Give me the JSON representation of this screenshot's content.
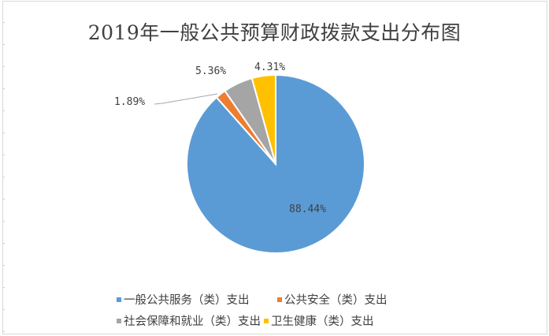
{
  "chart_data": {
    "type": "pie",
    "title": "2019年一般公共预算财政拨款支出分布图",
    "categories": [
      "一般公共服务（类）支出",
      "公共安全（类）支出",
      "社会保障和就业（类）支出",
      "卫生健康（类）支出"
    ],
    "values": [
      88.44,
      1.89,
      5.36,
      4.31
    ],
    "labels": [
      "88.44%",
      "1.89%",
      "5.36%",
      "4.31%"
    ],
    "colors": [
      "#5B9BD5",
      "#ED7D31",
      "#A5A5A5",
      "#FFC000"
    ],
    "legend_position": "bottom",
    "start_angle": "12 o'clock, clockwise"
  },
  "title": "2019年一般公共预算财政拨款支出分布图",
  "legend": {
    "items": [
      {
        "label": "一般公共服务（类）支出",
        "color": "#5B9BD5"
      },
      {
        "label": "公共安全（类）支出",
        "color": "#ED7D31"
      },
      {
        "label": "社会保障和就业（类）支出",
        "color": "#A5A5A5"
      },
      {
        "label": "卫生健康（类）支出",
        "color": "#FFC000"
      }
    ]
  },
  "data_labels": {
    "general": "88.44%",
    "security": "1.89%",
    "social": "5.36%",
    "health": "4.31%"
  }
}
